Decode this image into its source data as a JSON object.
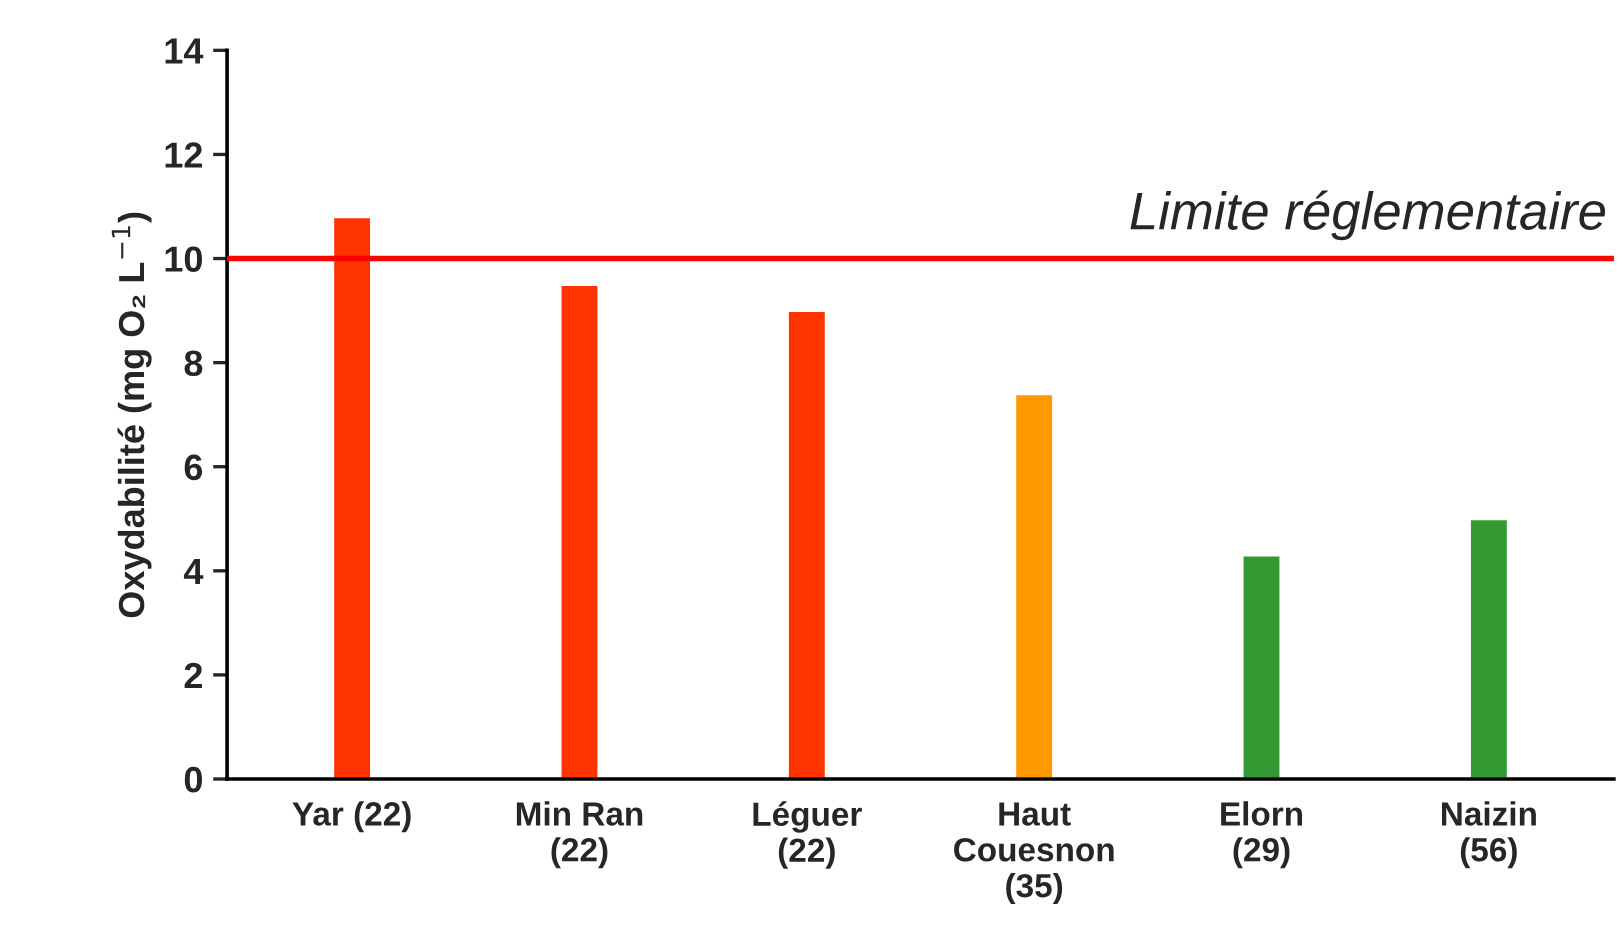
{
  "chart_data": {
    "type": "bar",
    "ylabel": "Oxydabilité (mg O₂ L$^{−1}$)",
    "categories": [
      "Yar (22)",
      "Min Ran\n(22)",
      "Léguer\n(22)",
      "Haut\nCouesnon\n(35)",
      "Elorn\n(29)",
      "Naizin\n(56)"
    ],
    "values": [
      10.8,
      9.5,
      9.0,
      7.4,
      4.3,
      5.0
    ],
    "colors": [
      "#ff3300",
      "#ff3300",
      "#ff3300",
      "#ff9900",
      "#339933",
      "#339933"
    ],
    "ylim": [
      0,
      14
    ],
    "yticks": [
      0,
      2,
      4,
      6,
      8,
      10,
      12,
      14
    ],
    "grid": false,
    "legend": false,
    "ref_lines": [
      {
        "axis": "y",
        "value": 10,
        "label": "Limite réglementaire",
        "color": "#ff0000",
        "line_style": "solid"
      }
    ]
  }
}
